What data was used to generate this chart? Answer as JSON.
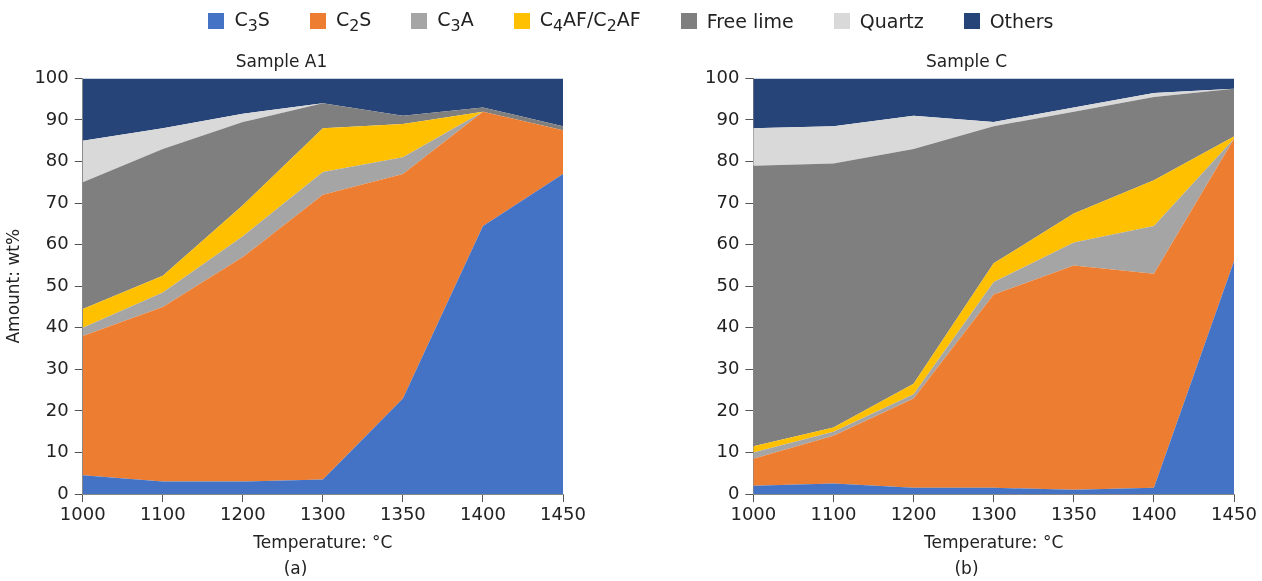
{
  "chart_data": [
    {
      "type": "area",
      "stacked": true,
      "title": "Sample A1",
      "xlabel": "Temperature: °C",
      "ylabel": "Amount: wt%",
      "categories": [
        "1000",
        "1100",
        "1200",
        "1300",
        "1350",
        "1400",
        "1450"
      ],
      "ylim": [
        0,
        100
      ],
      "yticks": [
        0,
        10,
        20,
        30,
        40,
        50,
        60,
        70,
        80,
        90,
        100
      ],
      "grid": false,
      "legend": "top",
      "annotations": [
        "(a)"
      ],
      "series": [
        {
          "name": "C$_{3}$S",
          "color": "#4472c4",
          "values": [
            4.5,
            3,
            3,
            3.5,
            23,
            64.5,
            77
          ]
        },
        {
          "name": "C$_{2}$S",
          "color": "#ed7d31",
          "values": [
            33.5,
            42,
            54,
            68.5,
            54,
            27.5,
            10.5
          ]
        },
        {
          "name": "C$_{3}$A",
          "color": "#a5a5a5",
          "values": [
            2,
            3.5,
            5,
            5.5,
            4,
            0,
            0
          ]
        },
        {
          "name": "C$_{4}$AF/C$_{2}$AF",
          "color": "#ffc000",
          "values": [
            4.5,
            4,
            7.5,
            10.5,
            8,
            0,
            0
          ]
        },
        {
          "name": "Free lime",
          "color": "#7f7f7f",
          "values": [
            30.5,
            30.5,
            20,
            6,
            2,
            1,
            1
          ]
        },
        {
          "name": "Quartz",
          "color": "#d9d9d9",
          "values": [
            10,
            5,
            2,
            0,
            0,
            0,
            0
          ]
        },
        {
          "name": "Others",
          "color": "#264478",
          "values": [
            15,
            12,
            8.5,
            6,
            9,
            7,
            11.5
          ]
        }
      ]
    },
    {
      "type": "area",
      "stacked": true,
      "title": "Sample C",
      "xlabel": "Temperature: °C",
      "categories": [
        "1000",
        "1100",
        "1200",
        "1300",
        "1350",
        "1400",
        "1450"
      ],
      "ylim": [
        0,
        100
      ],
      "yticks": [
        0,
        10,
        20,
        30,
        40,
        50,
        60,
        70,
        80,
        90,
        100
      ],
      "grid": false,
      "annotations": [
        "(b)"
      ],
      "series": [
        {
          "color": "#4472c4",
          "values": [
            2,
            2.5,
            1.5,
            1.5,
            1,
            1.5,
            56
          ]
        },
        {
          "color": "#ed7d31",
          "values": [
            6.5,
            11.5,
            21.5,
            46.5,
            54,
            51.5,
            29.5
          ]
        },
        {
          "color": "#a5a5a5",
          "values": [
            1.5,
            1,
            1,
            3,
            5.5,
            11.5,
            0
          ]
        },
        {
          "color": "#ffc000",
          "values": [
            1.5,
            1,
            2.5,
            4.5,
            7,
            11,
            0.5
          ]
        },
        {
          "color": "#7f7f7f",
          "values": [
            67.5,
            63.5,
            56.5,
            33,
            24.5,
            20,
            11.5
          ]
        },
        {
          "color": "#d9d9d9",
          "values": [
            9,
            9,
            8,
            1,
            1,
            1,
            0
          ]
        },
        {
          "color": "#264478",
          "values": [
            12,
            11.5,
            9,
            10.5,
            7,
            3.5,
            2.5
          ]
        }
      ]
    }
  ]
}
